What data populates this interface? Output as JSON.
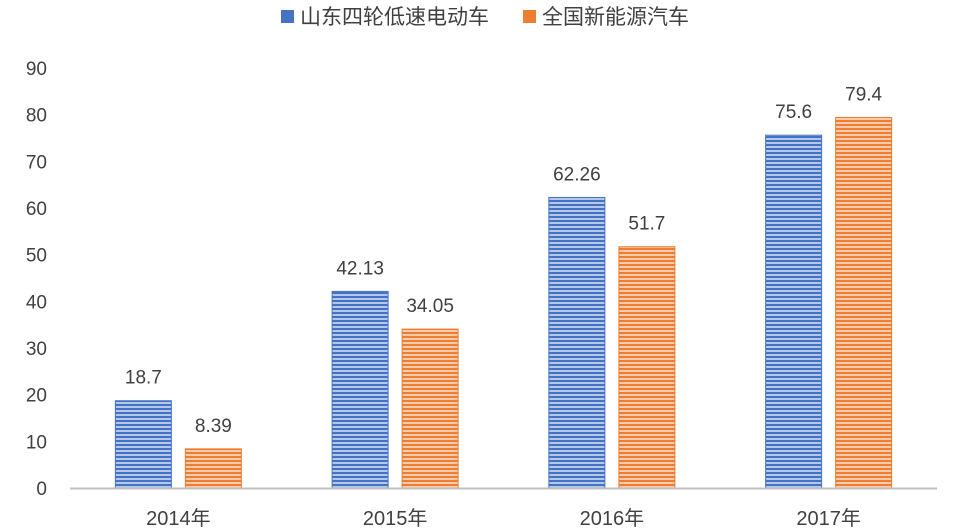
{
  "chart_data": {
    "type": "bar",
    "title": "",
    "xlabel": "",
    "ylabel": "",
    "categories": [
      "2014年",
      "2015年",
      "2016年",
      "2017年"
    ],
    "series": [
      {
        "name": "山东四轮低速电动车",
        "values": [
          18.7,
          42.13,
          62.26,
          75.6
        ],
        "labels": [
          "18.7",
          "42.13",
          "62.26",
          "75.6"
        ],
        "color": "#4472C4"
      },
      {
        "name": "全国新能源汽车",
        "values": [
          8.39,
          34.05,
          51.7,
          79.4
        ],
        "labels": [
          "8.39",
          "34.05",
          "51.7",
          "79.4"
        ],
        "color": "#ED7D31"
      }
    ],
    "ylim": [
      0,
      90
    ],
    "yticks": [
      "0",
      "10",
      "20",
      "30",
      "40",
      "50",
      "60",
      "70",
      "80",
      "90"
    ],
    "grid": false,
    "legend_position": "top"
  }
}
